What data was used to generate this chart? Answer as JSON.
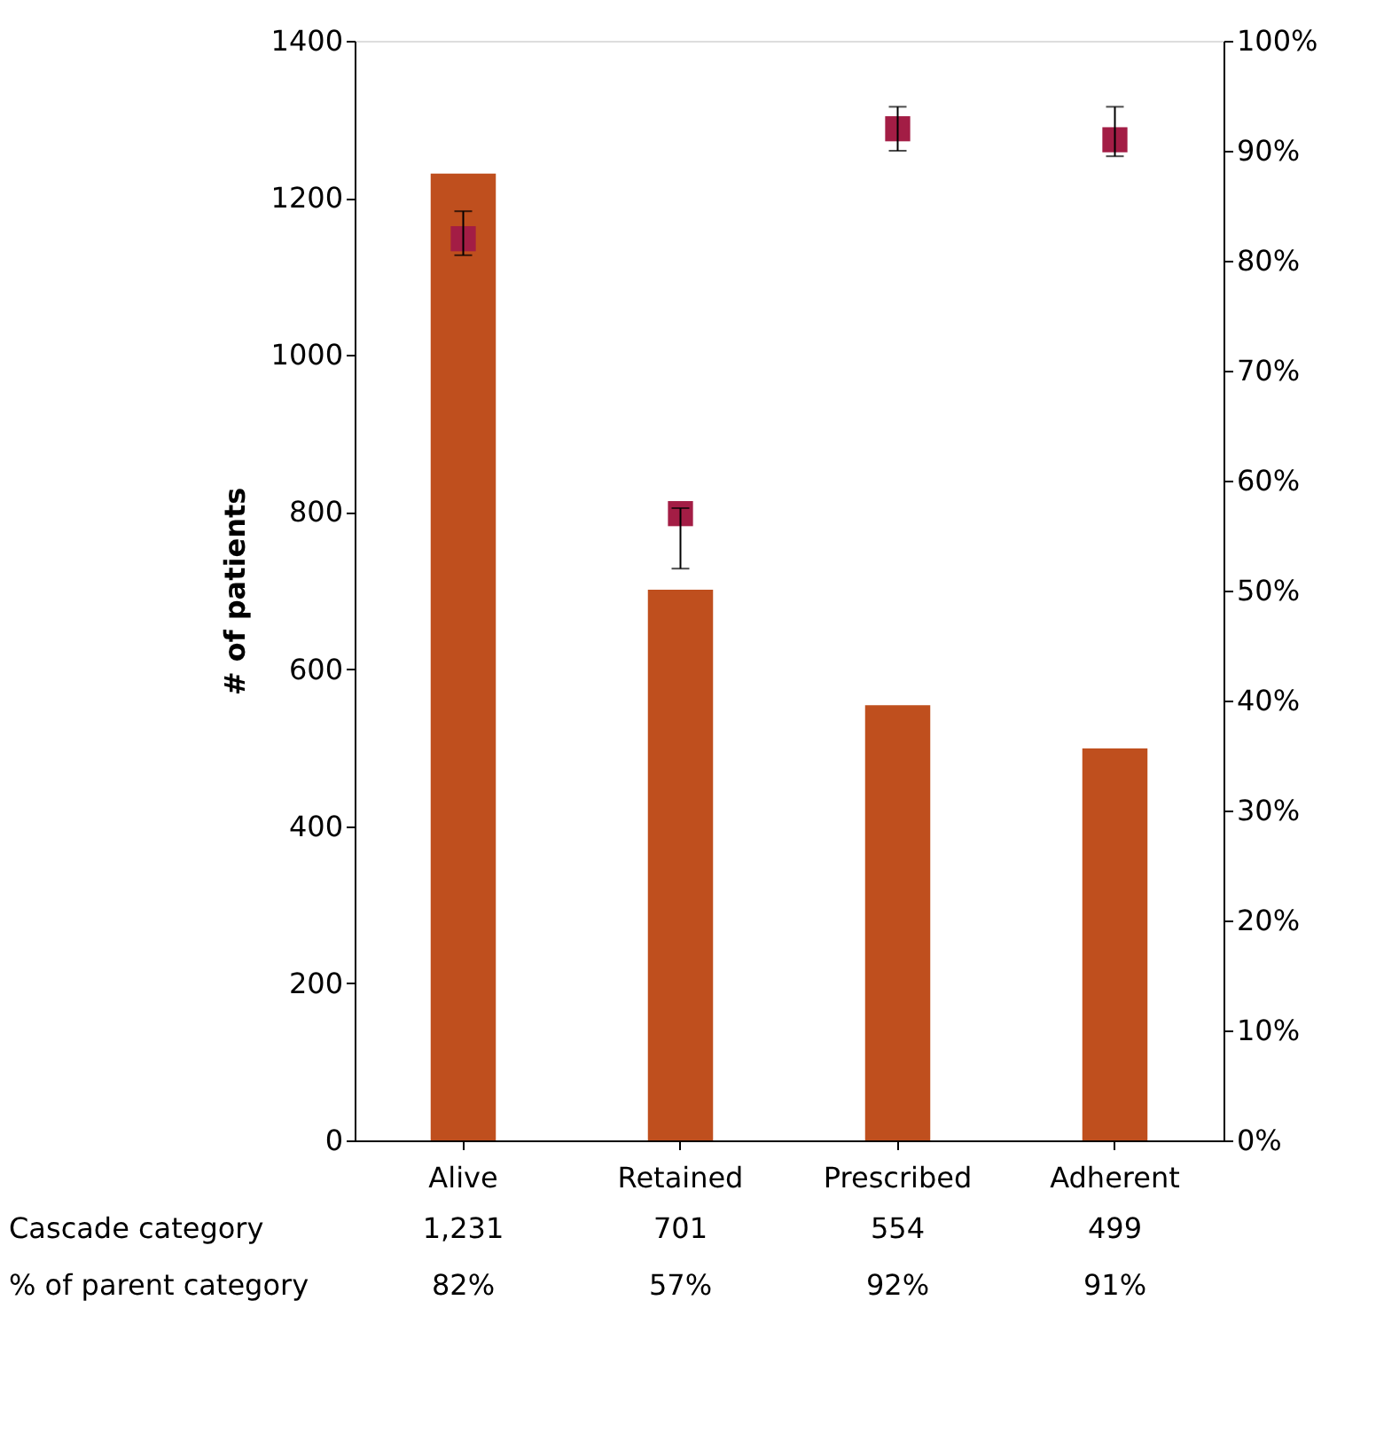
{
  "chart_data": {
    "type": "bar",
    "categories": [
      "Alive",
      "Retained",
      "Prescribed",
      "Adherent"
    ],
    "ylabel": "# of patients",
    "ylim": [
      0,
      1400
    ],
    "yticks": [
      0,
      200,
      400,
      600,
      800,
      1000,
      1200,
      1400
    ],
    "y2lim": [
      0,
      100
    ],
    "y2ticks": [
      {
        "value": 0,
        "label": "0%"
      },
      {
        "value": 10,
        "label": "10%"
      },
      {
        "value": 20,
        "label": "20%"
      },
      {
        "value": 30,
        "label": "30%"
      },
      {
        "value": 40,
        "label": "40%"
      },
      {
        "value": 50,
        "label": "50%"
      },
      {
        "value": 60,
        "label": "60%"
      },
      {
        "value": 70,
        "label": "70%"
      },
      {
        "value": 80,
        "label": "80%"
      },
      {
        "value": 90,
        "label": "90%"
      },
      {
        "value": 100,
        "label": "100%"
      }
    ],
    "grid": false,
    "legend": false,
    "annotations": [
      "Cascade category",
      "% of parent category"
    ],
    "series": [
      {
        "color": "#bf4f1e",
        "values": [
          1231,
          701,
          554,
          499
        ],
        "value_labels": [
          "1,231",
          "701",
          "554",
          "499"
        ]
      },
      {
        "type": "scatter",
        "axis": "y2",
        "marker": "square",
        "color": "#a31d45",
        "values": [
          82,
          57,
          92,
          91
        ],
        "value_labels": [
          "82%",
          "57%",
          "92%",
          "91%"
        ],
        "errors": [
          [
            80.5,
            84.5
          ],
          [
            52,
            57.5
          ],
          [
            90,
            94
          ],
          [
            89.5,
            94
          ]
        ]
      }
    ]
  }
}
